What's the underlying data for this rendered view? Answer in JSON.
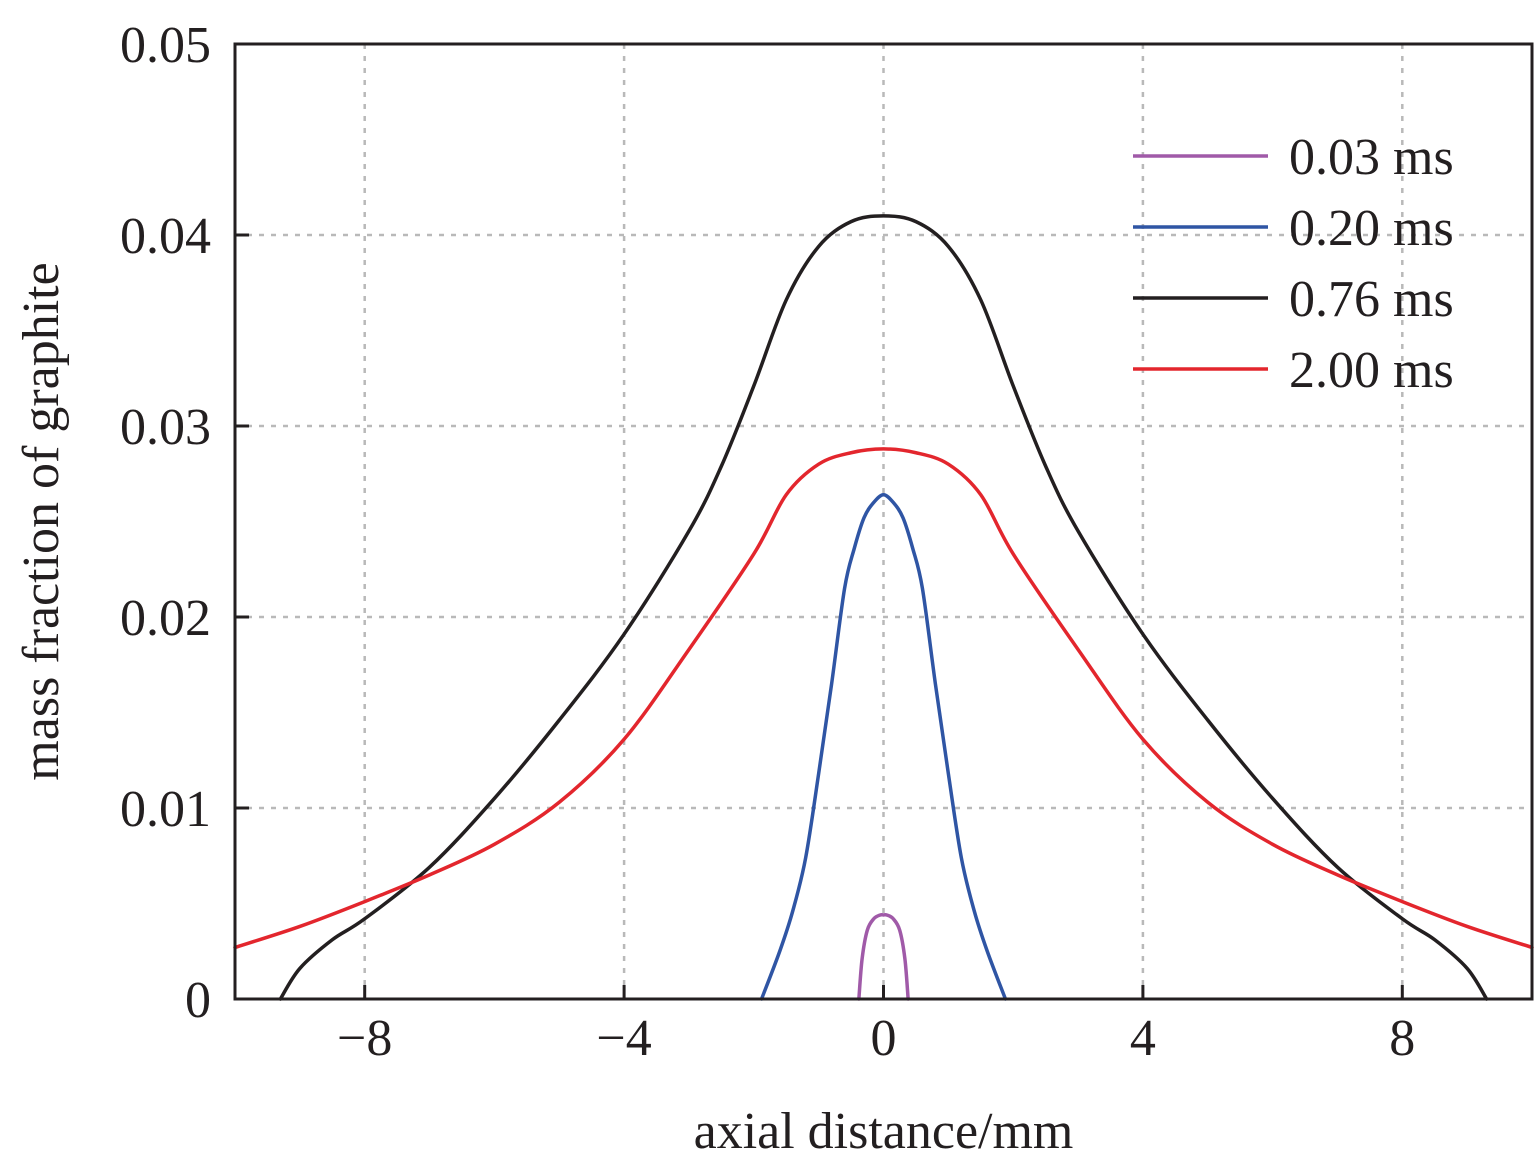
{
  "chart_data": {
    "type": "line",
    "title": "",
    "xlabel": "axial distance/mm",
    "ylabel": "mass fraction of graphite",
    "xlim": [
      -10,
      10
    ],
    "ylim": [
      0,
      0.05
    ],
    "x_ticks": [
      -8,
      -4,
      0,
      4,
      8
    ],
    "x_tick_labels": [
      "−8",
      "−4",
      "0",
      "4",
      "8"
    ],
    "y_ticks": [
      0,
      0.01,
      0.02,
      0.03,
      0.04,
      0.05
    ],
    "y_tick_labels": [
      "0",
      "0.01",
      "0.02",
      "0.03",
      "0.04",
      "0.05"
    ],
    "grid": true,
    "legend_position": "top-right",
    "series": [
      {
        "name": "0.03 ms",
        "color": "#a05aa8",
        "x": [
          -0.38,
          -0.33,
          -0.25,
          -0.15,
          -0.05,
          0,
          0.05,
          0.15,
          0.25,
          0.33,
          0.38
        ],
        "y": [
          0,
          0.0021,
          0.0036,
          0.0042,
          0.0044,
          0.0044,
          0.0044,
          0.0042,
          0.0036,
          0.0021,
          0
        ]
      },
      {
        "name": "0.20 ms",
        "color": "#2f55a4",
        "x": [
          -1.88,
          -1.6,
          -1.4,
          -1.2,
          -1.0,
          -0.8,
          -0.6,
          -0.45,
          -0.3,
          -0.15,
          0,
          0.15,
          0.3,
          0.45,
          0.6,
          0.8,
          1.0,
          1.2,
          1.4,
          1.6,
          1.88
        ],
        "y": [
          0,
          0.0025,
          0.0046,
          0.0074,
          0.0118,
          0.0165,
          0.0215,
          0.0236,
          0.0252,
          0.026,
          0.0264,
          0.026,
          0.0252,
          0.0236,
          0.0215,
          0.0165,
          0.0118,
          0.0074,
          0.0046,
          0.0025,
          0
        ]
      },
      {
        "name": "0.76 ms",
        "color": "#231f20",
        "x": [
          -9.3,
          -9,
          -8.5,
          -8,
          -7,
          -6,
          -5,
          -4,
          -3,
          -2.5,
          -2,
          -1.5,
          -1,
          -0.5,
          0,
          0.5,
          1,
          1.5,
          2,
          2.5,
          3,
          4,
          5,
          6,
          7,
          8,
          8.5,
          9,
          9.3
        ],
        "y": [
          0,
          0.0016,
          0.0031,
          0.0042,
          0.0069,
          0.0105,
          0.0146,
          0.0191,
          0.0245,
          0.0279,
          0.0321,
          0.0366,
          0.0394,
          0.0407,
          0.041,
          0.0407,
          0.0394,
          0.0366,
          0.0321,
          0.0279,
          0.0245,
          0.0191,
          0.0146,
          0.0105,
          0.0069,
          0.0042,
          0.0031,
          0.0016,
          0
        ]
      },
      {
        "name": "2.00 ms",
        "color": "#e3262d",
        "x": [
          -10,
          -9,
          -8,
          -7,
          -6,
          -5,
          -4,
          -3,
          -2,
          -1.5,
          -1,
          -0.5,
          0,
          0.5,
          1,
          1.5,
          2,
          3,
          4,
          5,
          6,
          7,
          8,
          9,
          10
        ],
        "y": [
          0.0027,
          0.0038,
          0.0051,
          0.0065,
          0.0081,
          0.0103,
          0.0136,
          0.0183,
          0.0233,
          0.0264,
          0.028,
          0.0286,
          0.0288,
          0.0286,
          0.028,
          0.0264,
          0.0233,
          0.0183,
          0.0136,
          0.0103,
          0.0081,
          0.0065,
          0.0051,
          0.0038,
          0.0027
        ]
      }
    ]
  }
}
